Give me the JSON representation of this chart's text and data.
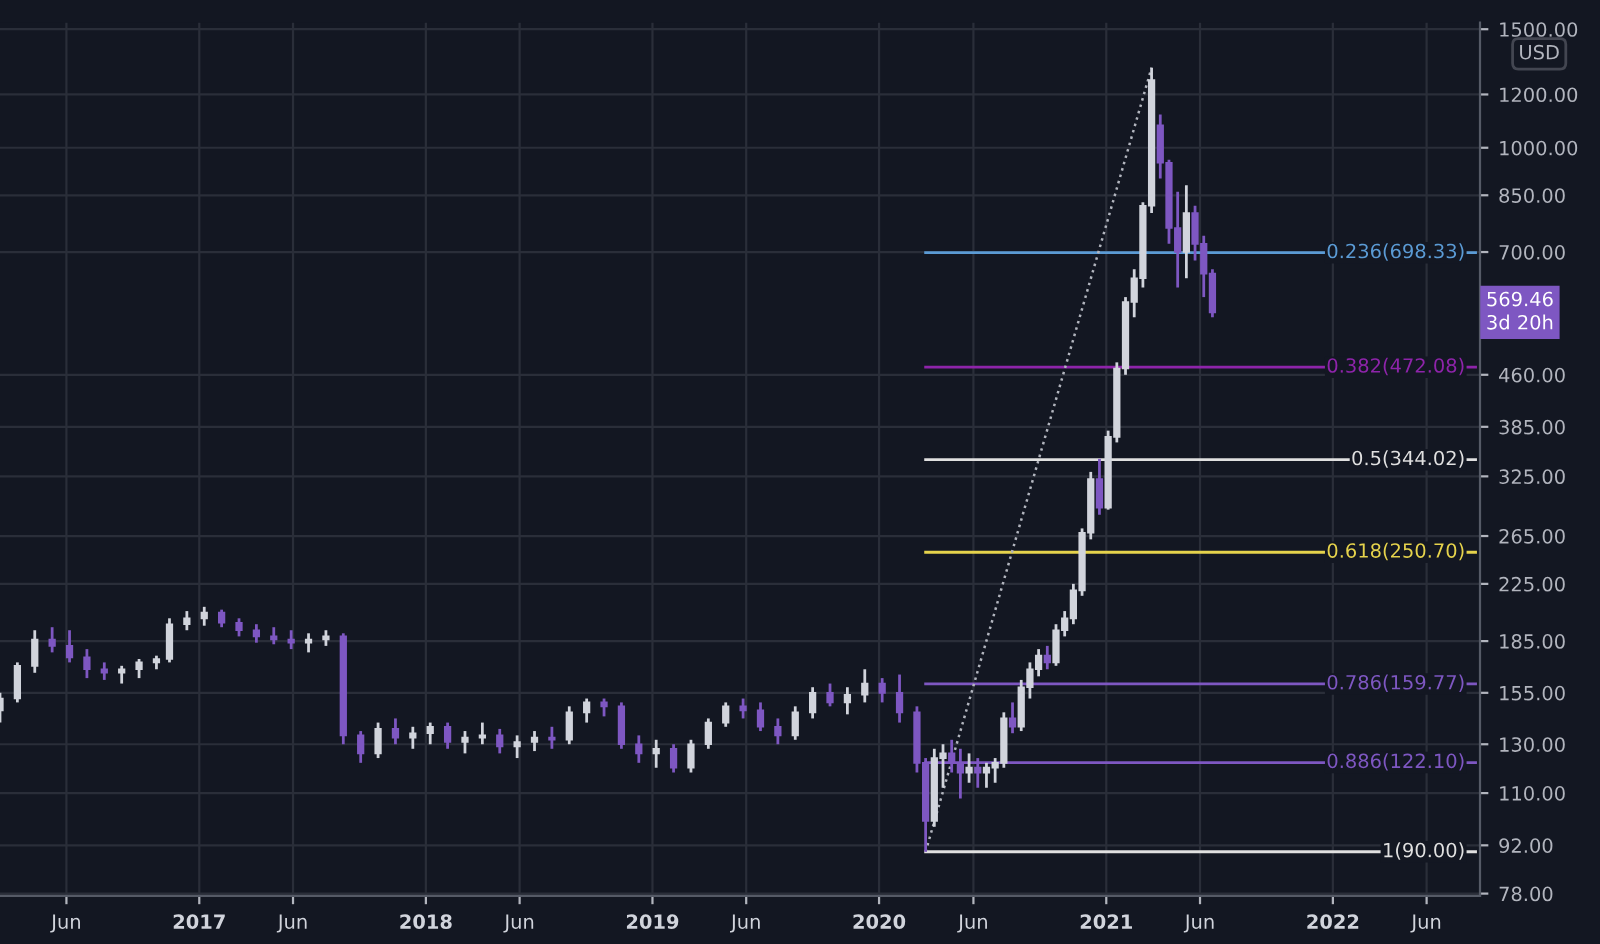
{
  "chart_data": {
    "type": "candlestick",
    "x": [
      "2016-02-15",
      "2016-03-14",
      "2016-04-11",
      "2016-05-09",
      "2016-06-06",
      "2016-07-04",
      "2016-08-01",
      "2016-08-29",
      "2016-09-26",
      "2016-10-24",
      "2016-11-14",
      "2016-12-12",
      "2017-01-09",
      "2017-02-06",
      "2017-03-06",
      "2017-04-03",
      "2017-05-01",
      "2017-05-29",
      "2017-06-26",
      "2017-07-24",
      "2017-08-21",
      "2017-09-18",
      "2017-10-16",
      "2017-11-13",
      "2017-12-11",
      "2018-01-08",
      "2018-02-05",
      "2018-03-05",
      "2018-04-02",
      "2018-04-30",
      "2018-05-28",
      "2018-06-25",
      "2018-07-23",
      "2018-08-20",
      "2018-09-17",
      "2018-10-15",
      "2018-11-12",
      "2018-12-10",
      "2019-01-07",
      "2019-02-04",
      "2019-03-04",
      "2019-04-01",
      "2019-04-29",
      "2019-05-27",
      "2019-06-24",
      "2019-07-22",
      "2019-08-19",
      "2019-09-16",
      "2019-10-14",
      "2019-11-11",
      "2019-12-09",
      "2020-01-06",
      "2020-02-03",
      "2020-03-02",
      "2020-03-16",
      "2020-03-30",
      "2020-04-13",
      "2020-04-27",
      "2020-05-11",
      "2020-05-25",
      "2020-06-08",
      "2020-06-22",
      "2020-07-06",
      "2020-07-20",
      "2020-08-03",
      "2020-08-17",
      "2020-08-31",
      "2020-09-14",
      "2020-09-28",
      "2020-10-12",
      "2020-10-26",
      "2020-11-09",
      "2020-11-23",
      "2020-12-07",
      "2020-12-21",
      "2021-01-04",
      "2021-01-18",
      "2021-02-01",
      "2021-02-15",
      "2021-03-01",
      "2021-03-15",
      "2021-03-29",
      "2021-04-12",
      "2021-04-26",
      "2021-05-10",
      "2021-05-24",
      "2021-06-07",
      "2021-06-21"
    ],
    "ohlc": [
      [
        146,
        155,
        140,
        152
      ],
      [
        152,
        172,
        150,
        170
      ],
      [
        170,
        192,
        166,
        186
      ],
      [
        186,
        194,
        178,
        182
      ],
      [
        182,
        192,
        172,
        175
      ],
      [
        175,
        180,
        163,
        168
      ],
      [
        168,
        172,
        162,
        166
      ],
      [
        166,
        170,
        160,
        168
      ],
      [
        168,
        174,
        163,
        172
      ],
      [
        172,
        176,
        168,
        174
      ],
      [
        174,
        200,
        172,
        196
      ],
      [
        196,
        205,
        192,
        200
      ],
      [
        200,
        208,
        195,
        204
      ],
      [
        204,
        206,
        194,
        197
      ],
      [
        197,
        200,
        188,
        192
      ],
      [
        192,
        196,
        184,
        188
      ],
      [
        188,
        194,
        183,
        186
      ],
      [
        186,
        192,
        180,
        184
      ],
      [
        184,
        190,
        178,
        186
      ],
      [
        186,
        192,
        182,
        188
      ],
      [
        188,
        190,
        130,
        134
      ],
      [
        134,
        136,
        122,
        126
      ],
      [
        126,
        140,
        124,
        137
      ],
      [
        137,
        142,
        130,
        133
      ],
      [
        133,
        138,
        128,
        135
      ],
      [
        135,
        140,
        130,
        138
      ],
      [
        138,
        140,
        128,
        131
      ],
      [
        131,
        136,
        126,
        133
      ],
      [
        133,
        140,
        130,
        134
      ],
      [
        134,
        137,
        126,
        129
      ],
      [
        129,
        134,
        124,
        131
      ],
      [
        131,
        136,
        127,
        133
      ],
      [
        133,
        138,
        128,
        132
      ],
      [
        132,
        148,
        130,
        145
      ],
      [
        145,
        152,
        140,
        150
      ],
      [
        150,
        152,
        143,
        148
      ],
      [
        148,
        150,
        128,
        130
      ],
      [
        130,
        134,
        122,
        126
      ],
      [
        126,
        132,
        120,
        128
      ],
      [
        128,
        130,
        118,
        120
      ],
      [
        120,
        132,
        118,
        130
      ],
      [
        130,
        142,
        128,
        140
      ],
      [
        140,
        150,
        138,
        148
      ],
      [
        148,
        152,
        142,
        146
      ],
      [
        146,
        150,
        136,
        138
      ],
      [
        138,
        142,
        130,
        134
      ],
      [
        134,
        148,
        132,
        145
      ],
      [
        145,
        158,
        142,
        155
      ],
      [
        155,
        160,
        148,
        150
      ],
      [
        150,
        158,
        144,
        154
      ],
      [
        154,
        168,
        150,
        160
      ],
      [
        160,
        163,
        150,
        155
      ],
      [
        155,
        165,
        140,
        145
      ],
      [
        145,
        148,
        118,
        122
      ],
      [
        122,
        124,
        90,
        100
      ],
      [
        100,
        128,
        98,
        124
      ],
      [
        124,
        130,
        112,
        126
      ],
      [
        126,
        132,
        118,
        122
      ],
      [
        122,
        128,
        108,
        118
      ],
      [
        118,
        126,
        114,
        120
      ],
      [
        120,
        124,
        112,
        118
      ],
      [
        118,
        122,
        112,
        120
      ],
      [
        120,
        124,
        114,
        122
      ],
      [
        122,
        145,
        120,
        142
      ],
      [
        142,
        150,
        135,
        138
      ],
      [
        138,
        162,
        136,
        158
      ],
      [
        158,
        172,
        152,
        168
      ],
      [
        168,
        180,
        164,
        176
      ],
      [
        176,
        182,
        168,
        172
      ],
      [
        172,
        196,
        170,
        192
      ],
      [
        192,
        205,
        188,
        200
      ],
      [
        200,
        225,
        196,
        220
      ],
      [
        220,
        272,
        216,
        268
      ],
      [
        268,
        330,
        262,
        322
      ],
      [
        322,
        345,
        285,
        292
      ],
      [
        292,
        380,
        290,
        372
      ],
      [
        372,
        480,
        365,
        470
      ],
      [
        470,
        600,
        460,
        590
      ],
      [
        590,
        660,
        560,
        640
      ],
      [
        640,
        830,
        620,
        820
      ],
      [
        820,
        1315,
        800,
        1260
      ],
      [
        1080,
        1120,
        900,
        950
      ],
      [
        950,
        960,
        720,
        760
      ],
      [
        760,
        860,
        620,
        700
      ],
      [
        700,
        880,
        640,
        800
      ],
      [
        800,
        820,
        680,
        720
      ],
      [
        720,
        740,
        600,
        650
      ],
      [
        650,
        660,
        560,
        569.46
      ]
    ],
    "colors": [
      "#d1d4dc",
      "#d1d4dc",
      "#d1d4dc",
      "#7e57c2",
      "#7e57c2",
      "#7e57c2",
      "#7e57c2",
      "#d1d4dc",
      "#d1d4dc",
      "#d1d4dc",
      "#d1d4dc",
      "#d1d4dc",
      "#d1d4dc",
      "#7e57c2",
      "#7e57c2",
      "#7e57c2",
      "#7e57c2",
      "#7e57c2",
      "#d1d4dc",
      "#d1d4dc",
      "#7e57c2",
      "#7e57c2",
      "#d1d4dc",
      "#7e57c2",
      "#d1d4dc",
      "#d1d4dc",
      "#7e57c2",
      "#d1d4dc",
      "#d1d4dc",
      "#7e57c2",
      "#d1d4dc",
      "#d1d4dc",
      "#7e57c2",
      "#d1d4dc",
      "#d1d4dc",
      "#7e57c2",
      "#7e57c2",
      "#7e57c2",
      "#d1d4dc",
      "#7e57c2",
      "#d1d4dc",
      "#d1d4dc",
      "#d1d4dc",
      "#7e57c2",
      "#7e57c2",
      "#7e57c2",
      "#d1d4dc",
      "#d1d4dc",
      "#7e57c2",
      "#d1d4dc",
      "#d1d4dc",
      "#7e57c2",
      "#7e57c2",
      "#7e57c2",
      "#7e57c2",
      "#d1d4dc",
      "#d1d4dc",
      "#7e57c2",
      "#7e57c2",
      "#d1d4dc",
      "#7e57c2",
      "#d1d4dc",
      "#d1d4dc",
      "#d1d4dc",
      "#7e57c2",
      "#d1d4dc",
      "#d1d4dc",
      "#d1d4dc",
      "#7e57c2",
      "#d1d4dc",
      "#d1d4dc",
      "#d1d4dc",
      "#d1d4dc",
      "#d1d4dc",
      "#7e57c2",
      "#d1d4dc",
      "#d1d4dc",
      "#d1d4dc",
      "#d1d4dc",
      "#d1d4dc",
      "#d1d4dc",
      "#7e57c2",
      "#7e57c2",
      "#7e57c2",
      "#d1d4dc",
      "#7e57c2",
      "#7e57c2",
      "#7e57c2"
    ],
    "series": [
      {
        "type": "line",
        "x": [
          "2020-03-16",
          "2021-03-15"
        ],
        "values": [
          90,
          1315
        ],
        "color": "#b2b5be",
        "line_style": "dotted"
      }
    ],
    "log": "y",
    "xlim": [
      "2016-02-15",
      "2022-08-26"
    ],
    "xticks": [
      {
        "value": "2016-06-01",
        "label": "Jun"
      },
      {
        "value": "2017-01-01",
        "label": "2017"
      },
      {
        "value": "2017-06-01",
        "label": "Jun"
      },
      {
        "value": "2018-01-01",
        "label": "2018"
      },
      {
        "value": "2018-06-01",
        "label": "Jun"
      },
      {
        "value": "2019-01-01",
        "label": "2019"
      },
      {
        "value": "2019-06-01",
        "label": "Jun"
      },
      {
        "value": "2020-01-01",
        "label": "2020"
      },
      {
        "value": "2020-06-01",
        "label": "Jun"
      },
      {
        "value": "2021-01-01",
        "label": "2021"
      },
      {
        "value": "2021-06-01",
        "label": "Jun"
      },
      {
        "value": "2022-01-01",
        "label": "2022"
      },
      {
        "value": "2022-06-01",
        "label": "Jun"
      }
    ],
    "ylim": [
      77.4,
      1534
    ],
    "yticks": [
      {
        "value": 78,
        "label": "78.00"
      },
      {
        "value": 92,
        "label": "92.00"
      },
      {
        "value": 110,
        "label": "110.00"
      },
      {
        "value": 130,
        "label": "130.00"
      },
      {
        "value": 155,
        "label": "155.00"
      },
      {
        "value": 185,
        "label": "185.00"
      },
      {
        "value": 225,
        "label": "225.00"
      },
      {
        "value": 265,
        "label": "265.00"
      },
      {
        "value": 325,
        "label": "325.00"
      },
      {
        "value": 385,
        "label": "385.00"
      },
      {
        "value": 460,
        "label": "460.00"
      },
      {
        "value": 700,
        "label": "700.00"
      },
      {
        "value": 850,
        "label": "850.00"
      },
      {
        "value": 1000,
        "label": "1000.00"
      },
      {
        "value": 1200,
        "label": "1200.00"
      },
      {
        "value": 1500,
        "label": "1500.00"
      }
    ],
    "grid": true,
    "ref_lines": [
      {
        "axis": "y",
        "value": 698.33,
        "label": "0.236(698.33)",
        "color": "#5b9bd5"
      },
      {
        "axis": "y",
        "value": 472.08,
        "label": "0.382(472.08)",
        "color": "#8e24aa"
      },
      {
        "axis": "y",
        "value": 344.02,
        "label": "0.5(344.02)",
        "color": "#e0e0e0"
      },
      {
        "axis": "y",
        "value": 250.7,
        "label": "0.618(250.70)",
        "color": "#e6d34c"
      },
      {
        "axis": "y",
        "value": 159.77,
        "label": "0.786(159.77)",
        "color": "#7e57c2"
      },
      {
        "axis": "y",
        "value": 122.1,
        "label": "0.886(122.10)",
        "color": "#7e57c2"
      },
      {
        "axis": "y",
        "value": 90.0,
        "label": "1(90.00)",
        "color": "#e0e0e0"
      }
    ],
    "annotations": [
      "USD",
      "569.46\n3d 20h"
    ]
  }
}
